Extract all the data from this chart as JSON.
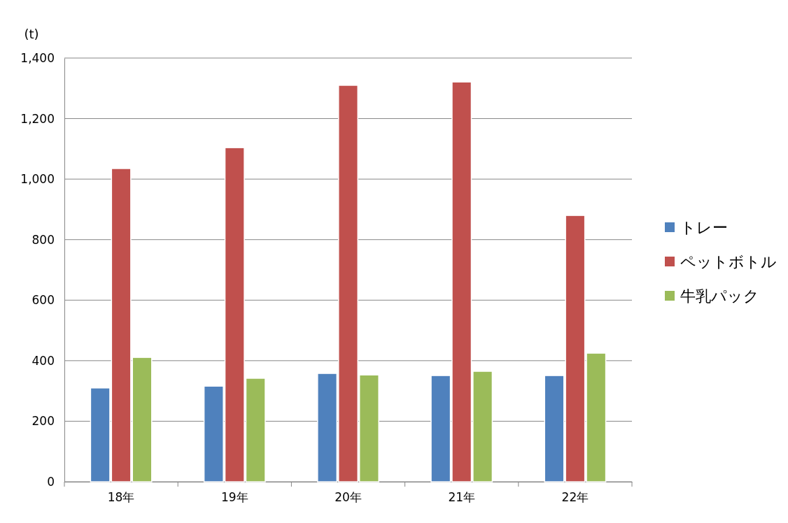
{
  "chart_data": {
    "type": "bar",
    "ylabel": "(t)",
    "categories": [
      "18年",
      "19年",
      "20年",
      "21年",
      "22年"
    ],
    "series": [
      {
        "name": "トレー",
        "color": "#4f81bd",
        "values": [
          310,
          316,
          358,
          351,
          351
        ]
      },
      {
        "name": "ペットボトル",
        "color": "#c0504d",
        "values": [
          1035,
          1104,
          1310,
          1321,
          880
        ]
      },
      {
        "name": "牛乳パック",
        "color": "#9bbb59",
        "values": [
          411,
          342,
          353,
          365,
          425
        ]
      }
    ],
    "ylim": [
      0,
      1400
    ],
    "yticks": [
      0,
      {
        "value": 200,
        "label": "200"
      },
      {
        "value": 400,
        "label": "400"
      },
      {
        "value": 600,
        "label": "600"
      },
      {
        "value": 800,
        "label": "800"
      },
      {
        "value": 1000,
        "label": "1,000"
      },
      {
        "value": 1200,
        "label": "1,200"
      },
      {
        "value": 1400,
        "label": "1,400"
      }
    ],
    "grid": "y",
    "legend": "right"
  }
}
